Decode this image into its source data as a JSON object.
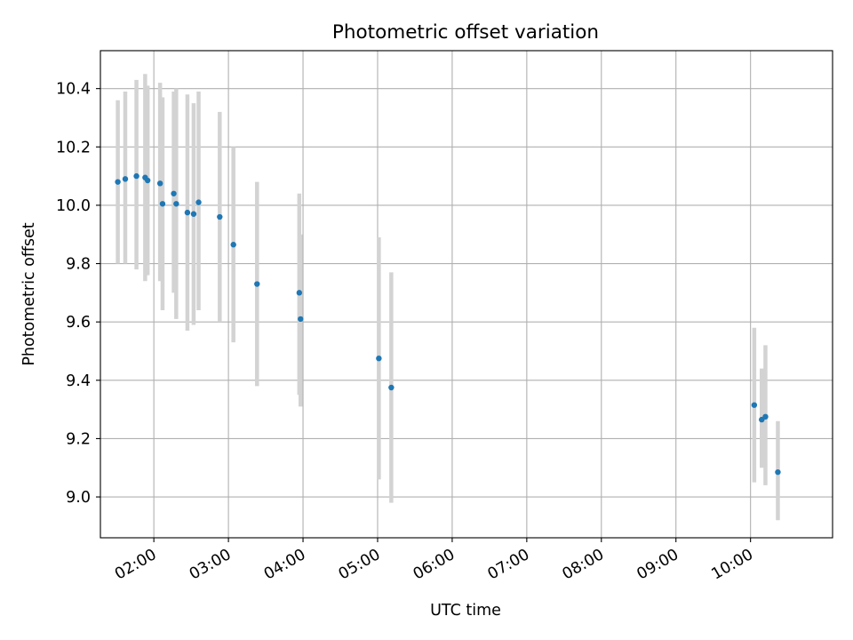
{
  "chart_data": {
    "type": "scatter",
    "title": "Photometric offset variation",
    "xlabel": "UTC time",
    "ylabel": "Photometric offset",
    "x_axis_type": "time",
    "xlim": [
      "01:17",
      "11:06"
    ],
    "ylim": [
      8.86,
      10.53
    ],
    "grid": true,
    "x_ticks": [
      "02:00",
      "03:00",
      "04:00",
      "05:00",
      "06:00",
      "07:00",
      "08:00",
      "09:00",
      "10:00"
    ],
    "y_ticks": [
      "9.0",
      "9.2",
      "9.4",
      "9.6",
      "9.8",
      "10.0",
      "10.2",
      "10.4"
    ],
    "colors": {
      "point": "#1f77b4",
      "errorbar": "#d3d3d3",
      "grid": "#b0b0b0"
    },
    "series": [
      {
        "points": [
          {
            "x": "01:31",
            "y": 10.08,
            "ylow": 9.8,
            "yhigh": 10.36
          },
          {
            "x": "01:37",
            "y": 10.09,
            "ylow": 9.8,
            "yhigh": 10.39
          },
          {
            "x": "01:46",
            "y": 10.1,
            "ylow": 9.78,
            "yhigh": 10.43
          },
          {
            "x": "01:53",
            "y": 10.095,
            "ylow": 9.74,
            "yhigh": 10.45
          },
          {
            "x": "01:55",
            "y": 10.085,
            "ylow": 9.76,
            "yhigh": 10.41
          },
          {
            "x": "02:05",
            "y": 10.075,
            "ylow": 9.74,
            "yhigh": 10.42
          },
          {
            "x": "02:07",
            "y": 10.005,
            "ylow": 9.64,
            "yhigh": 10.37
          },
          {
            "x": "02:16",
            "y": 10.04,
            "ylow": 9.7,
            "yhigh": 10.39
          },
          {
            "x": "02:18",
            "y": 10.005,
            "ylow": 9.61,
            "yhigh": 10.4
          },
          {
            "x": "02:27",
            "y": 9.975,
            "ylow": 9.57,
            "yhigh": 10.38
          },
          {
            "x": "02:32",
            "y": 9.97,
            "ylow": 9.59,
            "yhigh": 10.35
          },
          {
            "x": "02:36",
            "y": 10.01,
            "ylow": 9.64,
            "yhigh": 10.39
          },
          {
            "x": "02:53",
            "y": 9.96,
            "ylow": 9.6,
            "yhigh": 10.32
          },
          {
            "x": "03:04",
            "y": 9.865,
            "ylow": 9.53,
            "yhigh": 10.2
          },
          {
            "x": "03:23",
            "y": 9.73,
            "ylow": 9.38,
            "yhigh": 10.08
          },
          {
            "x": "03:57",
            "y": 9.7,
            "ylow": 9.35,
            "yhigh": 10.04
          },
          {
            "x": "03:58",
            "y": 9.61,
            "ylow": 9.31,
            "yhigh": 9.9
          },
          {
            "x": "05:01",
            "y": 9.475,
            "ylow": 9.06,
            "yhigh": 9.89
          },
          {
            "x": "05:11",
            "y": 9.375,
            "ylow": 8.98,
            "yhigh": 9.77
          },
          {
            "x": "10:03",
            "y": 9.315,
            "ylow": 9.05,
            "yhigh": 9.58
          },
          {
            "x": "10:09",
            "y": 9.265,
            "ylow": 9.1,
            "yhigh": 9.44
          },
          {
            "x": "10:12",
            "y": 9.275,
            "ylow": 9.04,
            "yhigh": 9.52
          },
          {
            "x": "10:22",
            "y": 9.085,
            "ylow": 8.92,
            "yhigh": 9.26
          }
        ]
      }
    ]
  }
}
